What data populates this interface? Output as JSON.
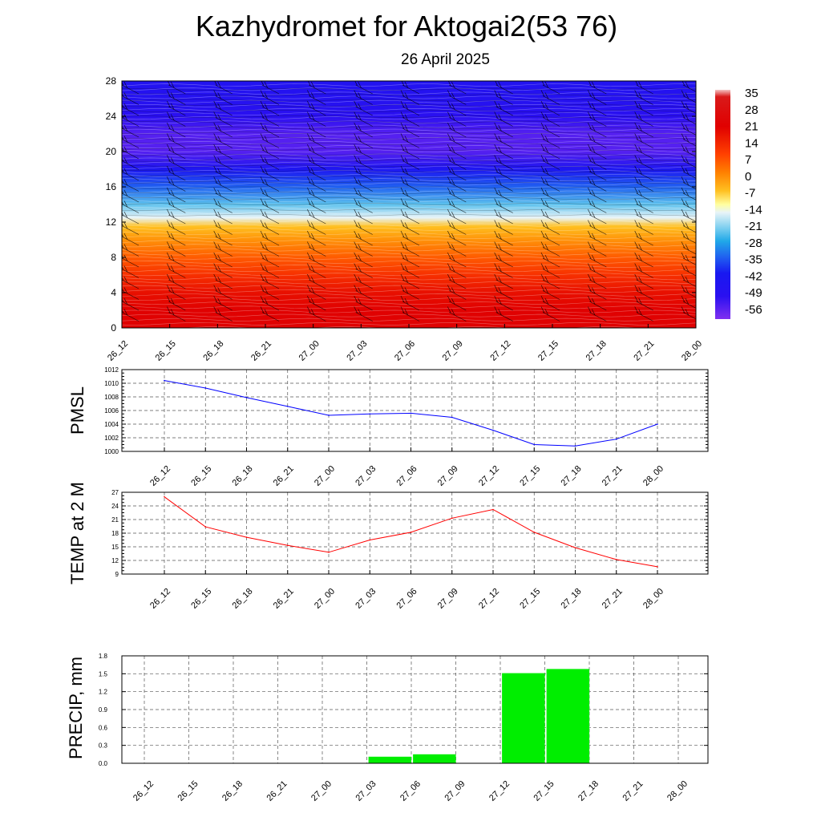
{
  "title": "Kazhydromet for Aktogai2(53 76)",
  "subtitle": "26 April 2025",
  "colors": {
    "pmsl_line": "#0000ff",
    "temp_line": "#ff0000",
    "precip_bar": "#00ee00",
    "axis": "#000000",
    "grid": "#555555"
  },
  "chart_data": [
    {
      "type": "heatmap",
      "name": "cross-section",
      "x_categories": [
        "26_12",
        "26_15",
        "26_18",
        "26_21",
        "27_00",
        "27_03",
        "27_06",
        "27_09",
        "27_12",
        "27_15",
        "27_18",
        "27_21",
        "28_00"
      ],
      "y_ticks": [
        0,
        4,
        8,
        12,
        16,
        20,
        24,
        28
      ],
      "ylim": [
        0,
        28
      ],
      "colorbar": {
        "labels": [
          "35",
          "28",
          "21",
          "14",
          "7",
          "0",
          "-7",
          "-14",
          "-21",
          "-28",
          "-35",
          "-42",
          "-49",
          "-56"
        ],
        "range": [
          -63,
          38
        ]
      },
      "level_temperatures": [
        {
          "y": 0,
          "t": 19
        },
        {
          "y": 2,
          "t": 18
        },
        {
          "y": 4,
          "t": 15
        },
        {
          "y": 6,
          "t": 11
        },
        {
          "y": 8,
          "t": 6
        },
        {
          "y": 10,
          "t": 0
        },
        {
          "y": 11.5,
          "t": -5
        },
        {
          "y": 12.5,
          "t": -15
        },
        {
          "y": 14,
          "t": -25
        },
        {
          "y": 16,
          "t": -40
        },
        {
          "y": 18,
          "t": -52
        },
        {
          "y": 20,
          "t": -60
        },
        {
          "y": 22,
          "t": -60
        },
        {
          "y": 24,
          "t": -57
        },
        {
          "y": 26,
          "t": -55
        },
        {
          "y": 28,
          "t": -54
        }
      ]
    },
    {
      "type": "line",
      "name": "pmsl",
      "ylabel": "PMSL",
      "categories": [
        "26_12",
        "26_15",
        "26_18",
        "26_21",
        "27_00",
        "27_03",
        "27_06",
        "27_09",
        "27_12",
        "27_15",
        "27_18",
        "27_21",
        "28_00"
      ],
      "values": [
        1010.4,
        1009.3,
        1007.9,
        1006.6,
        1005.3,
        1005.5,
        1005.6,
        1005.0,
        1003.1,
        1001.0,
        1000.8,
        1001.8,
        1004.0
      ],
      "ylim": [
        1000,
        1012
      ],
      "yticks": [
        "1000",
        "1002",
        "1004",
        "1006",
        "1008",
        "1010",
        "1012"
      ],
      "grid": true
    },
    {
      "type": "line",
      "name": "temp",
      "ylabel": "TEMP at 2 M",
      "categories": [
        "26_12",
        "26_15",
        "26_18",
        "26_21",
        "27_00",
        "27_03",
        "27_06",
        "27_09",
        "27_12",
        "27_15",
        "27_18",
        "27_21",
        "28_00"
      ],
      "values": [
        26.0,
        19.4,
        17.1,
        15.3,
        13.8,
        16.5,
        18.2,
        21.3,
        23.2,
        18.2,
        14.8,
        12.2,
        10.6
      ],
      "ylim": [
        9,
        27
      ],
      "yticks": [
        "9",
        "12",
        "15",
        "18",
        "21",
        "24",
        "27"
      ],
      "grid": true
    },
    {
      "type": "bar",
      "name": "precip",
      "ylabel": "PRECIP, mm",
      "categories": [
        "26_12",
        "26_15",
        "26_18",
        "26_21",
        "27_00",
        "27_03",
        "27_06",
        "27_09",
        "27_12",
        "27_15",
        "27_18",
        "27_21",
        "28_00"
      ],
      "values": [
        0,
        0,
        0,
        0,
        0,
        0,
        0.11,
        0.15,
        0,
        1.51,
        1.58,
        0,
        0
      ],
      "ylim": [
        0,
        1.8
      ],
      "yticks": [
        "0.0",
        "0.3",
        "0.6",
        "0.9",
        "1.2",
        "1.5",
        "1.8"
      ],
      "grid": true
    }
  ]
}
